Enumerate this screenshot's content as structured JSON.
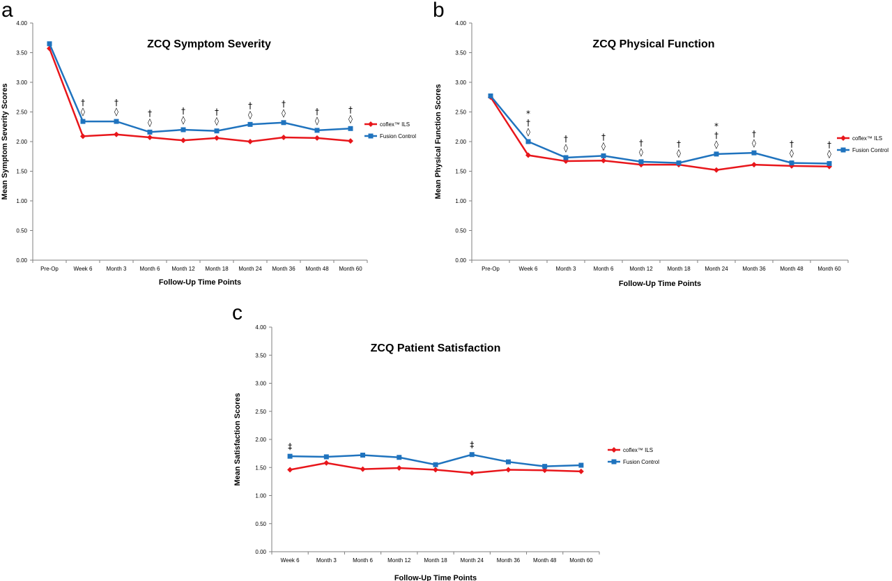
{
  "colors": {
    "coflex": "#e8161b",
    "fusion": "#1f73be",
    "axis": "#7f7f7f"
  },
  "chart_data": [
    {
      "panel": "a",
      "type": "line",
      "title": "ZCQ Symptom Severity",
      "xlabel": "Follow-Up Time Points",
      "ylabel": "Mean Symptom Severity Scores",
      "ylim": [
        0,
        4
      ],
      "yticks": [
        "0.00",
        "0.50",
        "1.00",
        "1.50",
        "2.00",
        "2.50",
        "3.00",
        "3.50",
        "4.00"
      ],
      "categories": [
        "Pre-Op",
        "Week 6",
        "Month 3",
        "Month 6",
        "Month 12",
        "Month 18",
        "Month 24",
        "Month 36",
        "Month 48",
        "Month 60"
      ],
      "series": [
        {
          "name": "coflex™ ILS",
          "color": "#e8161b",
          "marker": "diamond",
          "values": [
            3.57,
            2.09,
            2.12,
            2.07,
            2.02,
            2.06,
            2.0,
            2.07,
            2.06,
            2.01
          ]
        },
        {
          "name": "Fusion Control",
          "color": "#1f73be",
          "marker": "square",
          "values": [
            3.65,
            2.34,
            2.34,
            2.16,
            2.2,
            2.18,
            2.29,
            2.32,
            2.19,
            2.22
          ]
        }
      ],
      "annotations": [
        {
          "category": "Week 6",
          "symbols": [
            "†",
            "◊"
          ]
        },
        {
          "category": "Month 3",
          "symbols": [
            "†",
            "◊"
          ]
        },
        {
          "category": "Month 6",
          "symbols": [
            "†",
            "◊"
          ]
        },
        {
          "category": "Month 12",
          "symbols": [
            "†",
            "◊"
          ]
        },
        {
          "category": "Month 18",
          "symbols": [
            "†",
            "◊"
          ]
        },
        {
          "category": "Month 24",
          "symbols": [
            "†",
            "◊"
          ]
        },
        {
          "category": "Month 36",
          "symbols": [
            "†",
            "◊"
          ]
        },
        {
          "category": "Month 48",
          "symbols": [
            "†",
            "◊"
          ]
        },
        {
          "category": "Month 60",
          "symbols": [
            "†",
            "◊"
          ]
        }
      ],
      "legend": "right"
    },
    {
      "panel": "b",
      "type": "line",
      "title": "ZCQ Physical Function",
      "xlabel": "Follow-Up Time Points",
      "ylabel": "Mean Physical Function Scores",
      "ylim": [
        0,
        4
      ],
      "yticks": [
        "0.00",
        "0.50",
        "1.00",
        "1.50",
        "2.00",
        "2.50",
        "3.00",
        "3.50",
        "4.00"
      ],
      "categories": [
        "Pre-Op",
        "Week 6",
        "Month 3",
        "Month 6",
        "Month 12",
        "Month 18",
        "Month 24",
        "Month 36",
        "Month 48",
        "Month 60"
      ],
      "series": [
        {
          "name": "coflex™ ILS",
          "color": "#e8161b",
          "marker": "diamond",
          "values": [
            2.75,
            1.77,
            1.67,
            1.68,
            1.61,
            1.61,
            1.52,
            1.61,
            1.59,
            1.58
          ]
        },
        {
          "name": "Fusion Control",
          "color": "#1f73be",
          "marker": "square",
          "values": [
            2.77,
            2.0,
            1.73,
            1.76,
            1.66,
            1.64,
            1.79,
            1.81,
            1.64,
            1.63
          ]
        }
      ],
      "annotations": [
        {
          "category": "Week 6",
          "symbols": [
            "*",
            "†",
            "◊"
          ]
        },
        {
          "category": "Month 3",
          "symbols": [
            "†",
            "◊"
          ]
        },
        {
          "category": "Month 6",
          "symbols": [
            "†",
            "◊"
          ]
        },
        {
          "category": "Month 12",
          "symbols": [
            "†",
            "◊"
          ]
        },
        {
          "category": "Month 18",
          "symbols": [
            "†",
            "◊"
          ]
        },
        {
          "category": "Month 24",
          "symbols": [
            "*",
            "†",
            "◊"
          ]
        },
        {
          "category": "Month 36",
          "symbols": [
            "†",
            "◊"
          ]
        },
        {
          "category": "Month 48",
          "symbols": [
            "†",
            "◊"
          ]
        },
        {
          "category": "Month 60",
          "symbols": [
            "†",
            "◊"
          ]
        }
      ],
      "legend": "right"
    },
    {
      "panel": "c",
      "type": "line",
      "title": "ZCQ Patient Satisfaction",
      "xlabel": "Follow-Up Time Points",
      "ylabel": "Mean Satisfaction Scores",
      "ylim": [
        0,
        4
      ],
      "yticks": [
        "0.00",
        "0.50",
        "1.00",
        "1.50",
        "2.00",
        "2.50",
        "3.00",
        "3.50",
        "4.00"
      ],
      "categories": [
        "Week 6",
        "Month 3",
        "Month 6",
        "Month 12",
        "Month 18",
        "Month 24",
        "Month 36",
        "Month 48",
        "Month 60"
      ],
      "series": [
        {
          "name": "coflex™ ILS",
          "color": "#e8161b",
          "marker": "diamond",
          "values": [
            1.46,
            1.58,
            1.47,
            1.49,
            1.46,
            1.4,
            1.46,
            1.45,
            1.43
          ]
        },
        {
          "name": "Fusion Control",
          "color": "#1f73be",
          "marker": "square",
          "values": [
            1.7,
            1.69,
            1.72,
            1.68,
            1.55,
            1.73,
            1.6,
            1.52,
            1.54
          ]
        }
      ],
      "annotations": [
        {
          "category": "Week 6",
          "symbols": [
            "‡"
          ]
        },
        {
          "category": "Month 24",
          "symbols": [
            "‡"
          ]
        }
      ],
      "legend": "right"
    }
  ]
}
